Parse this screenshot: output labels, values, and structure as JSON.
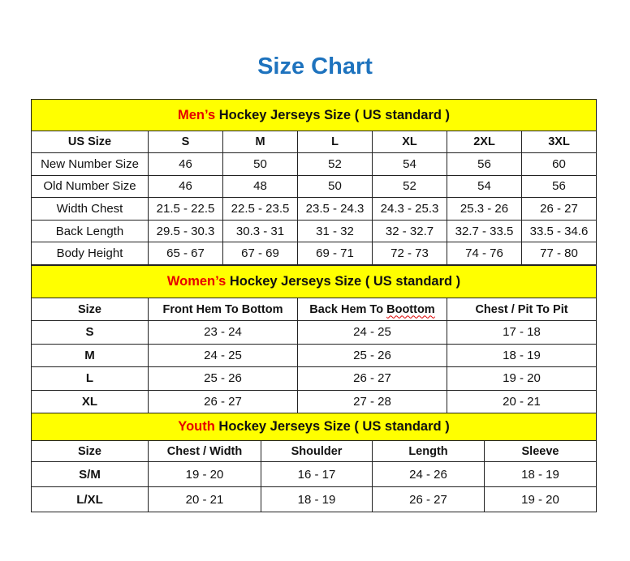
{
  "title": "Size Chart",
  "colors": {
    "title": "#1e73be",
    "banner": "#ffff00",
    "accent": "#e60000"
  },
  "men": {
    "banner_accent": "Men’s",
    "banner_rest": " Hockey Jerseys Size ( US standard )",
    "headers": [
      "US Size",
      "S",
      "M",
      "L",
      "XL",
      "2XL",
      "3XL"
    ],
    "rows": [
      [
        "New Number Size",
        "46",
        "50",
        "52",
        "54",
        "56",
        "60"
      ],
      [
        "Old Number Size",
        "46",
        "48",
        "50",
        "52",
        "54",
        "56"
      ],
      [
        "Width Chest",
        "21.5 - 22.5",
        "22.5 - 23.5",
        "23.5 - 24.3",
        "24.3 - 25.3",
        "25.3 - 26",
        "26 - 27"
      ],
      [
        "Back Length",
        "29.5 - 30.3",
        "30.3 - 31",
        "31 - 32",
        "32 - 32.7",
        "32.7 - 33.5",
        "33.5 - 34.6"
      ],
      [
        "Body Height",
        "65 - 67",
        "67 - 69",
        "69 - 71",
        "72 - 73",
        "74 - 76",
        "77 - 80"
      ]
    ]
  },
  "women": {
    "banner_accent": "Women’s",
    "banner_rest": " Hockey Jerseys Size ( US standard )",
    "headers": [
      "Size",
      "Front Hem To Bottom",
      "Back Hem To Boottom",
      "Chest / Pit To Pit"
    ],
    "rows": [
      [
        "S",
        "23 - 24",
        "24 - 25",
        "17 - 18"
      ],
      [
        "M",
        "24 - 25",
        "25 - 26",
        "18 - 19"
      ],
      [
        "L",
        "25 - 26",
        "26 - 27",
        "19 - 20"
      ],
      [
        "XL",
        "26 - 27",
        "27 - 28",
        "20 - 21"
      ]
    ]
  },
  "youth": {
    "banner_accent": "Youth",
    "banner_rest": " Hockey Jerseys Size ( US standard )",
    "headers": [
      "Size",
      "Chest / Width",
      "Shoulder",
      "Length",
      "Sleeve"
    ],
    "rows": [
      [
        "S/M",
        "19 - 20",
        "16 - 17",
        "24 - 26",
        "18 - 19"
      ],
      [
        "L/XL",
        "20 - 21",
        "18 - 19",
        "26 - 27",
        "19 - 20"
      ]
    ]
  }
}
